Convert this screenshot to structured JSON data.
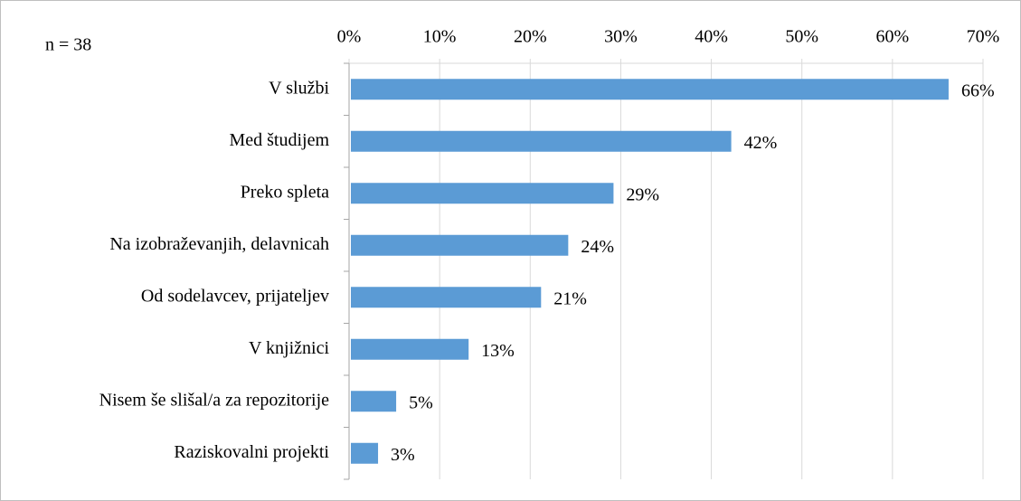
{
  "chart_data": {
    "type": "hbar",
    "annotation": "n = 38",
    "categories": [
      "V službi",
      "Med študijem",
      "Preko spleta",
      "Na izobraževanjih, delavnicah",
      "Od sodelavcev, prijateljev",
      "V knjižnici",
      "Nisem še slišal/a za repozitorije",
      "Raziskovalni projekti"
    ],
    "values": [
      66,
      42,
      29,
      24,
      21,
      13,
      5,
      3
    ],
    "value_labels": [
      "66%",
      "42%",
      "29%",
      "24%",
      "21%",
      "13%",
      "5%",
      "3%"
    ],
    "color": "#5b9bd5",
    "xlim": [
      0,
      70
    ],
    "xticks": [
      {
        "value": 0,
        "label": "0%"
      },
      {
        "value": 10,
        "label": "10%"
      },
      {
        "value": 20,
        "label": "20%"
      },
      {
        "value": 30,
        "label": "30%"
      },
      {
        "value": 40,
        "label": "40%"
      },
      {
        "value": 50,
        "label": "50%"
      },
      {
        "value": 60,
        "label": "60%"
      },
      {
        "value": 70,
        "label": "70%"
      }
    ],
    "grid": true
  }
}
